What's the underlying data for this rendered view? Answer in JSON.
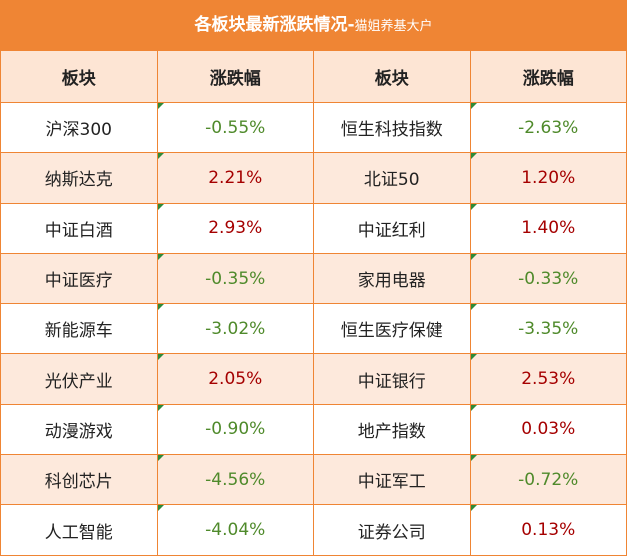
{
  "header": {
    "title": "各板块最新涨跌情况-",
    "subtitle": "猫姐养基大户"
  },
  "table": {
    "columns": [
      "板块",
      "涨跌幅",
      "板块",
      "涨跌幅"
    ],
    "rows": [
      [
        "沪深300",
        "-0.55%",
        "恒生科技指数",
        "-2.63%"
      ],
      [
        "纳斯达克",
        "2.21%",
        "北证50",
        "1.20%"
      ],
      [
        "中证白酒",
        "2.93%",
        "中证红利",
        "1.40%"
      ],
      [
        "中证医疗",
        "-0.35%",
        "家用电器",
        "-0.33%"
      ],
      [
        "新能源车",
        "-3.02%",
        "恒生医疗保健",
        "-3.35%"
      ],
      [
        "光伏产业",
        "2.05%",
        "中证银行",
        "2.53%"
      ],
      [
        "动漫游戏",
        "-0.90%",
        "地产指数",
        "0.03%"
      ],
      [
        "科创芯片",
        "-4.56%",
        "中证军工",
        "-0.72%"
      ],
      [
        "人工智能",
        "-4.04%",
        "证券公司",
        "0.13%"
      ]
    ],
    "up_color": "#a50000",
    "down_color": "#4f8a2b"
  }
}
